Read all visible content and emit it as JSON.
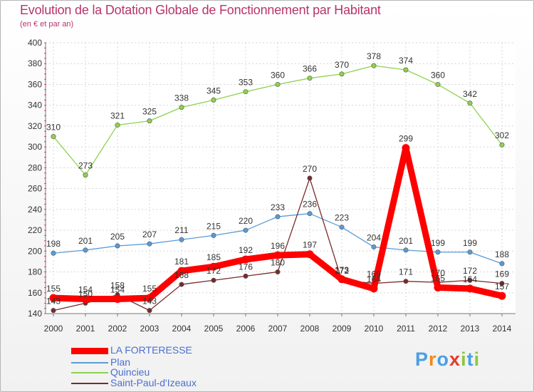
{
  "chart_data": {
    "type": "line",
    "title": "Evolution de la Dotation Globale de Fonctionnement par Habitant",
    "subtitle": "(en € et par an)",
    "xlabel": "",
    "ylabel": "",
    "ylim": [
      140,
      400
    ],
    "yticks": [
      140,
      160,
      180,
      200,
      220,
      240,
      260,
      280,
      300,
      320,
      340,
      360,
      380,
      400
    ],
    "categories": [
      "2000",
      "2001",
      "2002",
      "2003",
      "2004",
      "2005",
      "2006",
      "2007",
      "2008",
      "2009",
      "2010",
      "2011",
      "2012",
      "2013",
      "2014"
    ],
    "grid": true,
    "legend_position": "bottom-left",
    "series": [
      {
        "name": "LA FORTERESSE",
        "color": "#ff0000",
        "values": [
          155,
          154,
          154,
          155,
          181,
          185,
          192,
          196,
          197,
          173,
          164,
          299,
          165,
          164,
          157
        ],
        "labels": [
          "155",
          "154",
          "154",
          "155",
          "181",
          "185",
          "192",
          "196",
          "197",
          "173",
          "164",
          "299",
          "165",
          "164",
          "157"
        ]
      },
      {
        "name": "Plan",
        "color": "#5b9bd5",
        "values": [
          198,
          201,
          205,
          207,
          211,
          215,
          220,
          233,
          236,
          223,
          204,
          201,
          199,
          199,
          188
        ],
        "labels": [
          "198",
          "201",
          "205",
          "207",
          "211",
          "215",
          "220",
          "233",
          "236",
          "223",
          "204",
          "201",
          "199",
          "199",
          "188"
        ]
      },
      {
        "name": "Quincieu",
        "color": "#8fd14f",
        "values": [
          310,
          273,
          321,
          325,
          338,
          345,
          353,
          360,
          366,
          370,
          378,
          374,
          360,
          342,
          302
        ],
        "labels": [
          "310",
          "273",
          "321",
          "325",
          "338",
          "345",
          "353",
          "360",
          "366",
          "370",
          "378",
          "374",
          "360",
          "342",
          "302"
        ]
      },
      {
        "name": "Saint-Paul-d'Izeaux",
        "color": "#7a2a2a",
        "values": [
          143,
          150,
          158,
          143,
          168,
          172,
          176,
          180,
          270,
          172,
          169,
          171,
          170,
          172,
          169
        ],
        "labels": [
          "143",
          "150",
          "158",
          "143",
          "168",
          "172",
          "176",
          "180",
          "270",
          "172",
          "169",
          "171",
          "170",
          "172",
          "169"
        ]
      }
    ]
  },
  "logo": {
    "text": "Proxiti",
    "letter_colors": [
      "#4b9ee6",
      "#f08a1c",
      "#4b9ee6",
      "#e63a2f",
      "#8dc63f",
      "#4b9ee6",
      "#8dc63f"
    ]
  }
}
